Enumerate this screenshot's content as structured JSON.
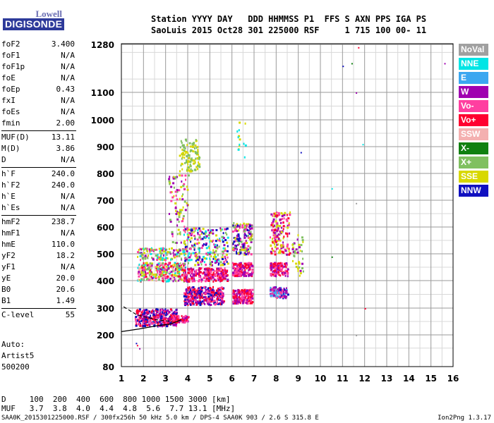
{
  "logo": {
    "top": "Lowell",
    "bottom": "DIGISONDE"
  },
  "header": {
    "line1": "Station YYYY DAY   DDD HHMMSS P1  FFS S AXN PPS IGA PS",
    "line2": "SaoLuis 2015 Oct28 301 225000 RSF     1 715 100 00- 11"
  },
  "params": [
    {
      "k": "foF2",
      "v": "3.400"
    },
    {
      "k": "foF1",
      "v": "N/A"
    },
    {
      "k": "foF1p",
      "v": "N/A"
    },
    {
      "k": "foE",
      "v": "N/A"
    },
    {
      "k": "foEp",
      "v": "0.43"
    },
    {
      "k": "fxI",
      "v": "N/A"
    },
    {
      "k": "foEs",
      "v": "N/A"
    },
    {
      "k": "fmin",
      "v": "2.00"
    },
    {
      "k": "MUF(D)",
      "v": "13.11"
    },
    {
      "k": "M(D)",
      "v": "3.86"
    },
    {
      "k": "D",
      "v": "N/A"
    },
    {
      "k": "h`F",
      "v": "240.0"
    },
    {
      "k": "h`F2",
      "v": "240.0"
    },
    {
      "k": "h`E",
      "v": "N/A"
    },
    {
      "k": "h`Es",
      "v": "N/A"
    },
    {
      "k": "hmF2",
      "v": "238.7"
    },
    {
      "k": "hmF1",
      "v": "N/A"
    },
    {
      "k": "hmE",
      "v": "110.0"
    },
    {
      "k": "yF2",
      "v": "18.2"
    },
    {
      "k": "yF1",
      "v": "N/A"
    },
    {
      "k": "yE",
      "v": "20.0"
    },
    {
      "k": "B0",
      "v": "20.6"
    },
    {
      "k": "B1",
      "v": "1.49"
    },
    {
      "k": "C-level",
      "v": "55"
    }
  ],
  "auto": {
    "line1": "Auto:",
    "line2": "Artist5",
    "line3": "500200"
  },
  "legend": [
    {
      "label": "NoVal",
      "color": "#a0a0a0"
    },
    {
      "label": "NNE",
      "color": "#00e5e5"
    },
    {
      "label": "E",
      "color": "#3ba7f0"
    },
    {
      "label": "W",
      "color": "#a000b0"
    },
    {
      "label": "Vo-",
      "color": "#ff3fa0"
    },
    {
      "label": "Vo+",
      "color": "#ff0030"
    },
    {
      "label": "SSW",
      "color": "#f4b0b0"
    },
    {
      "label": "X-",
      "color": "#108010"
    },
    {
      "label": "X+",
      "color": "#80c060"
    },
    {
      "label": "SSE",
      "color": "#d8d800"
    },
    {
      "label": "NNW",
      "color": "#1010c0"
    }
  ],
  "dmuf": {
    "d_line": "D     100  200  400  600  800 1000 1500 3000 [km]",
    "muf_line": "MUF   3.7  3.8  4.0  4.4  4.8  5.6  7.7 13.1 [MHz]"
  },
  "footer": {
    "left": "SAA0K_2015301225000.RSF / 300fx256h 50 kHz 5.0 km / DPS-4 SAA0K 903 / 2.6 S 315.8 E",
    "right": "Ion2Png 1.3.17"
  },
  "chart_data": {
    "type": "scatter",
    "x_ticks": [
      1,
      2,
      3,
      4,
      5,
      6,
      7,
      8,
      9,
      10,
      11,
      12,
      13,
      14,
      15,
      16
    ],
    "y_ticks": [
      80,
      200,
      300,
      400,
      500,
      600,
      700,
      800,
      900,
      1000,
      1100,
      1280
    ],
    "xlim": [
      1,
      16
    ],
    "ylim": [
      80,
      1280
    ],
    "grid": true,
    "legend_position": "right",
    "trace": {
      "dashed": [
        [
          1.1,
          305
        ],
        [
          1.7,
          275
        ],
        [
          2.6,
          256
        ],
        [
          3.3,
          250
        ]
      ],
      "solid": [
        [
          1.0,
          212
        ],
        [
          1.8,
          222
        ],
        [
          2.6,
          234
        ],
        [
          3.2,
          240
        ],
        [
          3.7,
          256
        ]
      ]
    },
    "clusters": [
      {
        "x": [
          1.6,
          3.5
        ],
        "y": [
          235,
          300
        ],
        "n": 330,
        "colors": [
          "#ff0030",
          "#ff3fa0",
          "#a000b0",
          "#1010c0"
        ]
      },
      {
        "x": [
          3.2,
          4.0
        ],
        "y": [
          250,
          275
        ],
        "n": 90,
        "colors": [
          "#ff0030",
          "#a000b0",
          "#ff3fa0"
        ]
      },
      {
        "x": [
          1.7,
          3.9
        ],
        "y": [
          400,
          470
        ],
        "n": 320,
        "colors": [
          "#ff0030",
          "#ff3fa0",
          "#a000b0",
          "#d8d800",
          "#80c060",
          "#00e5e5",
          "#f4b0b0"
        ]
      },
      {
        "x": [
          1.7,
          3.9
        ],
        "y": [
          480,
          525
        ],
        "n": 130,
        "colors": [
          "#d8d800",
          "#80c060",
          "#00e5e5",
          "#ff3fa0",
          "#a000b0"
        ]
      },
      {
        "x": [
          3.8,
          5.6
        ],
        "y": [
          315,
          380
        ],
        "n": 340,
        "colors": [
          "#ff0030",
          "#ff3fa0",
          "#a000b0",
          "#1010c0"
        ]
      },
      {
        "x": [
          3.8,
          5.8
        ],
        "y": [
          400,
          450
        ],
        "n": 240,
        "colors": [
          "#ff0030",
          "#ff3fa0",
          "#a000b0"
        ]
      },
      {
        "x": [
          3.8,
          5.8
        ],
        "y": [
          460,
          600
        ],
        "n": 260,
        "colors": [
          "#d8d800",
          "#80c060",
          "#00e5e5",
          "#ff3fa0",
          "#a000b0",
          "#1010c0"
        ]
      },
      {
        "x": [
          3.6,
          4.5
        ],
        "y": [
          810,
          930
        ],
        "n": 120,
        "colors": [
          "#d8d800",
          "#80c060"
        ]
      },
      {
        "x": [
          3.1,
          4.0
        ],
        "y": [
          540,
          800
        ],
        "n": 90,
        "colors": [
          "#d8d800",
          "#ff3fa0",
          "#a000b0",
          "#80c060"
        ]
      },
      {
        "x": [
          6.0,
          6.9
        ],
        "y": [
          320,
          370
        ],
        "n": 170,
        "colors": [
          "#ff0030",
          "#ff3fa0",
          "#a000b0"
        ]
      },
      {
        "x": [
          6.0,
          6.9
        ],
        "y": [
          420,
          470
        ],
        "n": 150,
        "colors": [
          "#ff0030",
          "#ff3fa0",
          "#a000b0"
        ]
      },
      {
        "x": [
          6.0,
          6.9
        ],
        "y": [
          500,
          620
        ],
        "n": 160,
        "colors": [
          "#d8d800",
          "#80c060",
          "#a000b0",
          "#ff3fa0",
          "#1010c0"
        ]
      },
      {
        "x": [
          7.7,
          8.5
        ],
        "y": [
          340,
          380
        ],
        "n": 120,
        "colors": [
          "#3ba7f0",
          "#a000b0",
          "#1010c0",
          "#ff3fa0"
        ]
      },
      {
        "x": [
          7.7,
          8.5
        ],
        "y": [
          420,
          470
        ],
        "n": 120,
        "colors": [
          "#ff0030",
          "#ff3fa0",
          "#a000b0"
        ]
      },
      {
        "x": [
          7.7,
          8.6
        ],
        "y": [
          500,
          660
        ],
        "n": 150,
        "colors": [
          "#a000b0",
          "#ff3fa0",
          "#ff0030",
          "#d8d800"
        ]
      },
      {
        "x": [
          8.7,
          9.2
        ],
        "y": [
          420,
          580
        ],
        "n": 40,
        "colors": [
          "#d8d800",
          "#80c060",
          "#a000b0"
        ]
      },
      {
        "x": [
          6.2,
          6.6
        ],
        "y": [
          850,
          1000
        ],
        "n": 14,
        "colors": [
          "#00e5e5",
          "#d8d800"
        ]
      }
    ],
    "isolated_points": [
      [
        1.8,
        150
      ],
      [
        1.7,
        162
      ],
      [
        1.65,
        170
      ],
      [
        10.5,
        490
      ],
      [
        10.5,
        745
      ],
      [
        11.6,
        200
      ],
      [
        11.6,
        1100
      ],
      [
        11.7,
        1270
      ],
      [
        11.0,
        1200
      ],
      [
        11.4,
        1210
      ],
      [
        11.9,
        910
      ],
      [
        11.6,
        690
      ],
      [
        15.6,
        1210
      ],
      [
        12.0,
        300
      ],
      [
        9.1,
        880
      ]
    ]
  }
}
